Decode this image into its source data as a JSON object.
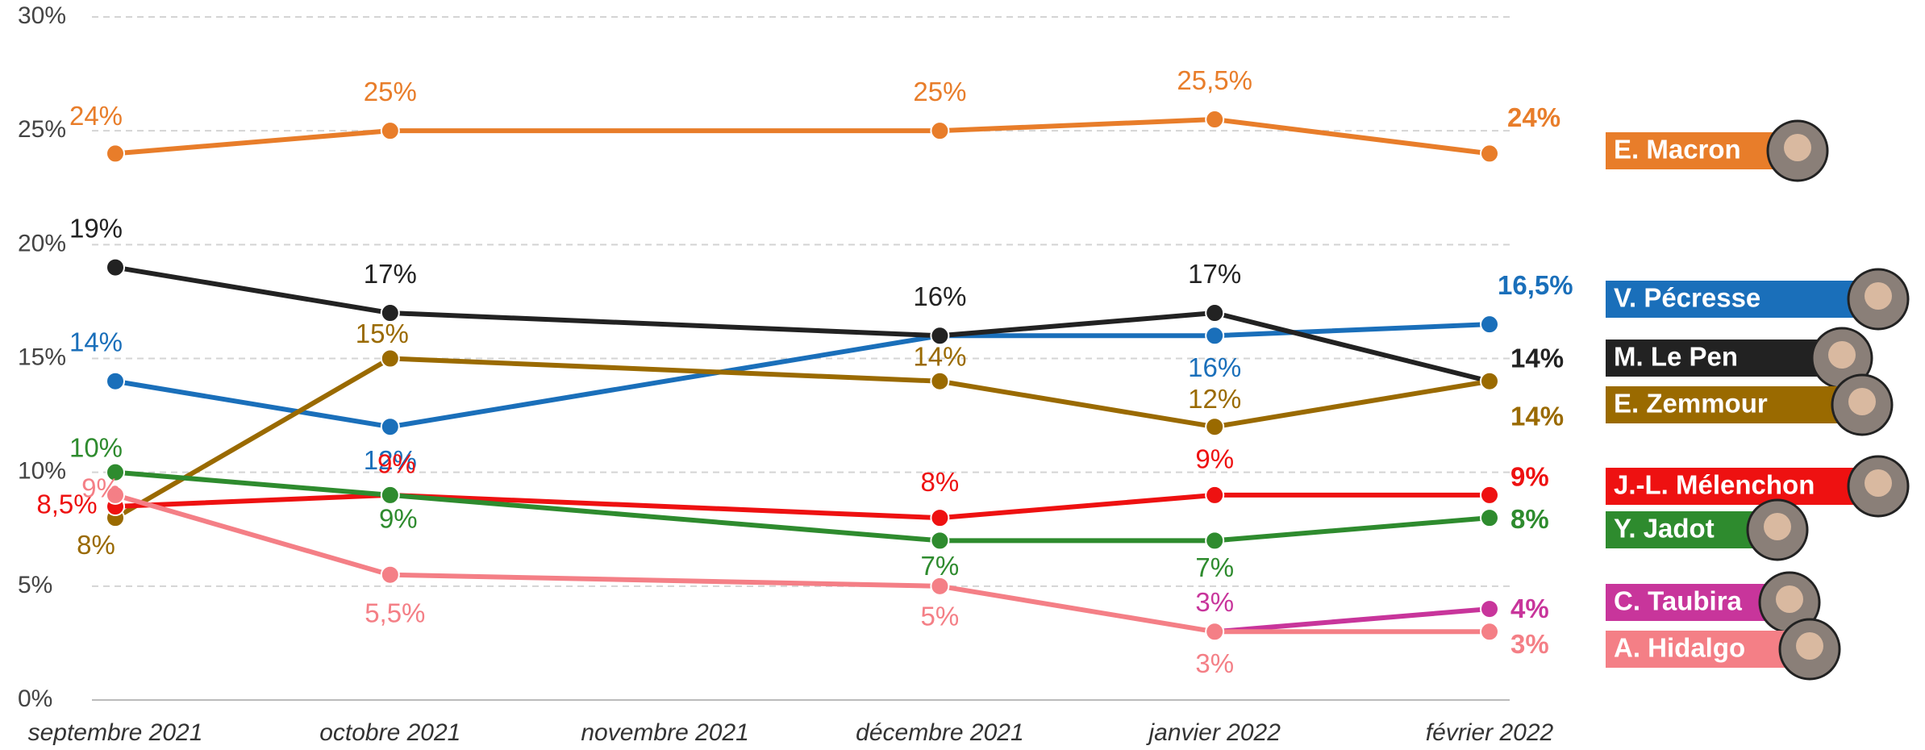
{
  "chart_data": {
    "type": "line",
    "x": [
      "septembre 2021",
      "octobre 2021",
      "décembre 2021",
      "janvier 2022",
      "février 2022"
    ],
    "xticks": [
      "septembre 2021",
      "octobre 2021",
      "novembre 2021",
      "décembre 2021",
      "janvier 2022",
      "février 2022"
    ],
    "ylim": [
      0,
      30
    ],
    "yticks": [
      {
        "value": 0,
        "label": "0%"
      },
      {
        "value": 5,
        "label": "5%"
      },
      {
        "value": 10,
        "label": "10%"
      },
      {
        "value": 15,
        "label": "15%"
      },
      {
        "value": 20,
        "label": "20%"
      },
      {
        "value": 25,
        "label": "25%"
      },
      {
        "value": 30,
        "label": "30%"
      }
    ],
    "grid": true,
    "series": [
      {
        "name": "E. Macron",
        "color": "#e87d2a",
        "values": [
          24,
          25,
          25,
          25.5,
          24
        ],
        "value_labels": [
          "24%",
          "25%",
          "25%",
          "25,5%",
          "24%"
        ]
      },
      {
        "name": "V. Pécresse",
        "color": "#1a6fba",
        "values": [
          14,
          12,
          16,
          16,
          16.5
        ],
        "value_labels": [
          "14%",
          "12%",
          null,
          "16%",
          "16,5%"
        ]
      },
      {
        "name": "M. Le Pen",
        "color": "#222222",
        "values": [
          19,
          17,
          16,
          17,
          14
        ],
        "value_labels": [
          "19%",
          "17%",
          "16%",
          "17%",
          "14%"
        ]
      },
      {
        "name": "E. Zemmour",
        "color": "#9a6a00",
        "values": [
          8,
          15,
          14,
          12,
          14
        ],
        "value_labels": [
          "8%",
          "15%",
          "14%",
          "12%",
          "14%"
        ]
      },
      {
        "name": "J.-L. Mélenchon",
        "color": "#ee1111",
        "values": [
          8.5,
          9,
          8,
          9,
          9
        ],
        "value_labels": [
          "8,5%",
          "9%",
          "8%",
          "9%",
          "9%"
        ]
      },
      {
        "name": "Y. Jadot",
        "color": "#2e8b2e",
        "values": [
          10,
          9,
          7,
          7,
          8
        ],
        "value_labels": [
          "10%",
          "9%",
          "7%",
          "7%",
          "8%"
        ]
      },
      {
        "name": "C. Taubira",
        "color": "#c8359b",
        "values": [
          null,
          null,
          null,
          3,
          4
        ],
        "value_labels": [
          null,
          null,
          null,
          "3%",
          "4%"
        ]
      },
      {
        "name": "A. Hidalgo",
        "color": "#f47f86",
        "values": [
          9,
          5.5,
          5,
          3,
          3
        ],
        "value_labels": [
          "9%",
          "5,5%",
          "5%",
          "3%",
          "3%"
        ]
      }
    ]
  }
}
